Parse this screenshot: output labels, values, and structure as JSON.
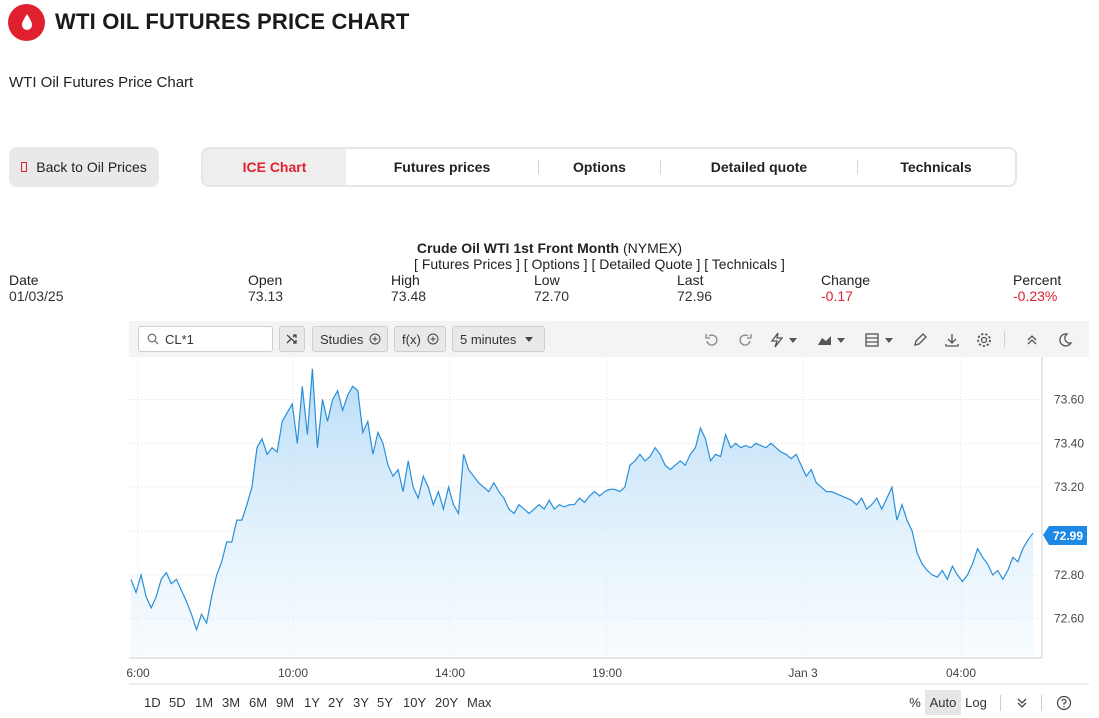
{
  "header": {
    "title": "WTI OIL FUTURES PRICE CHART",
    "logo_icon": "oil-drop-icon",
    "brand_color": "#e0202e"
  },
  "subtitle": "WTI Oil Futures Price Chart",
  "back_button": {
    "label": "Back to Oil Prices"
  },
  "tabs": [
    {
      "label": "ICE Chart",
      "active": true
    },
    {
      "label": "Futures prices"
    },
    {
      "label": "Options"
    },
    {
      "label": "Detailed quote"
    },
    {
      "label": "Technicals"
    }
  ],
  "quote": {
    "instrument": "Crude Oil WTI 1st Front Month",
    "exchange": "(NYMEX)",
    "links_text": "[ Futures Prices ] [ Options ] [ Detailed Quote ] [ Technicals ]",
    "date_label": "Date",
    "date": "01/03/25",
    "open_label": "Open",
    "open": "73.13",
    "high_label": "High",
    "high": "73.48",
    "low_label": "Low",
    "low": "72.70",
    "last_label": "Last",
    "last": "72.96",
    "change_label": "Change",
    "change": "-0.17",
    "percent_label": "Percent",
    "percent": "-0.23%"
  },
  "toolbar": {
    "symbol_value": "CL*1",
    "studies_label": "Studies",
    "fx_label": "f(x)",
    "interval_label": "5 minutes"
  },
  "range_buttons": [
    "1D",
    "5D",
    "1M",
    "3M",
    "6M",
    "9M",
    "1Y",
    "2Y",
    "3Y",
    "5Y",
    "10Y",
    "20Y",
    "Max"
  ],
  "scale": {
    "percent_label": "%",
    "auto_label": "Auto",
    "log_label": "Log"
  },
  "chart_data": {
    "type": "area",
    "x_labels": [
      "6:00",
      "10:00",
      "14:00",
      "19:00",
      "Jan 3",
      "04:00"
    ],
    "y_ticks": [
      "73.60",
      "73.40",
      "73.20",
      "72.80",
      "72.60"
    ],
    "ylim": [
      72.43,
      73.78
    ],
    "current_price_label": "72.99",
    "line_color": "#2a8fd8",
    "series": [
      {
        "values": [
          72.78,
          72.72,
          72.8,
          72.7,
          72.65,
          72.7,
          72.78,
          72.81,
          72.76,
          72.78,
          72.73,
          72.68,
          72.62,
          72.55,
          72.62,
          72.58,
          72.7,
          72.8,
          72.86,
          72.95,
          72.95,
          73.05,
          73.05,
          73.12,
          73.2,
          73.38,
          73.42,
          73.35,
          73.38,
          73.36,
          73.5,
          73.54,
          73.58,
          73.4,
          73.66,
          73.44,
          73.74,
          73.38,
          73.6,
          73.5,
          73.6,
          73.64,
          73.55,
          73.62,
          73.66,
          73.64,
          73.45,
          73.5,
          73.35,
          73.45,
          73.4,
          73.3,
          73.25,
          73.28,
          73.18,
          73.32,
          73.2,
          73.15,
          73.25,
          73.2,
          73.12,
          73.18,
          73.1,
          73.2,
          73.12,
          73.08,
          73.35,
          73.28,
          73.25,
          73.22,
          73.2,
          73.18,
          73.22,
          73.18,
          73.15,
          73.1,
          73.08,
          73.12,
          73.1,
          73.08,
          73.1,
          73.12,
          73.1,
          73.14,
          73.1,
          73.12,
          73.11,
          73.12,
          73.12,
          73.15,
          73.13,
          73.16,
          73.18,
          73.16,
          73.18,
          73.19,
          73.19,
          73.18,
          73.2,
          73.3,
          73.32,
          73.35,
          73.32,
          73.34,
          73.38,
          73.35,
          73.3,
          73.28,
          73.3,
          73.32,
          73.3,
          73.35,
          73.38,
          73.47,
          73.42,
          73.32,
          73.35,
          73.34,
          73.44,
          73.38,
          73.4,
          73.38,
          73.39,
          73.38,
          73.4,
          73.39,
          73.38,
          73.4,
          73.38,
          73.36,
          73.35,
          73.33,
          73.35,
          73.3,
          73.25,
          73.28,
          73.22,
          73.2,
          73.18,
          73.18,
          73.17,
          73.16,
          73.15,
          73.14,
          73.12,
          73.15,
          73.1,
          73.12,
          73.15,
          73.1,
          73.15,
          73.2,
          73.05,
          73.12,
          73.05,
          73.0,
          72.9,
          72.85,
          72.82,
          72.8,
          72.79,
          72.82,
          72.78,
          72.84,
          72.8,
          72.77,
          72.8,
          72.85,
          72.92,
          72.88,
          72.85,
          72.8,
          72.82,
          72.78,
          72.82,
          72.88,
          72.86,
          72.92,
          72.96,
          72.99
        ]
      }
    ]
  }
}
